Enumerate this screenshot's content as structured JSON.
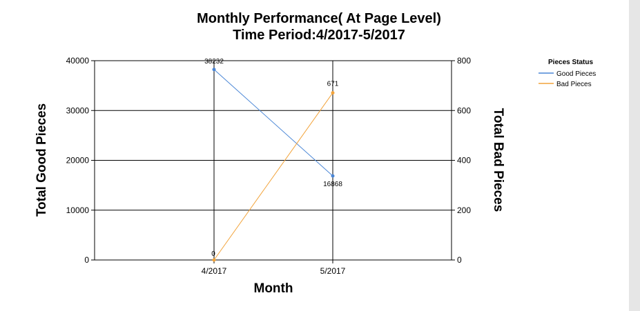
{
  "chart_data": {
    "type": "line",
    "title_line1": "Monthly Performance( At Page Level)",
    "title_line2": "Time Period:4/2017-5/2017",
    "xlabel": "Month",
    "ylabel_left": "Total Good Pieces",
    "ylabel_right": "Total Bad Pieces",
    "categories": [
      "4/2017",
      "5/2017"
    ],
    "y_left": {
      "range": [
        0,
        40000
      ],
      "ticks": [
        "0",
        "10000",
        "20000",
        "30000",
        "40000"
      ]
    },
    "y_right": {
      "range": [
        0,
        800
      ],
      "ticks": [
        "0",
        "200",
        "400",
        "600",
        "800"
      ]
    },
    "grid": true,
    "legend": {
      "title": "Pieces Status",
      "position": "top-right"
    },
    "series": [
      {
        "name": "Good Pieces",
        "axis": "left",
        "color": "#4a86d6",
        "values": [
          38232,
          16868
        ],
        "labels": [
          "38232",
          "16868"
        ]
      },
      {
        "name": "Bad Pieces",
        "axis": "right",
        "color": "#f2a33a",
        "values": [
          0,
          671
        ],
        "labels": [
          "0",
          "671"
        ]
      }
    ]
  }
}
